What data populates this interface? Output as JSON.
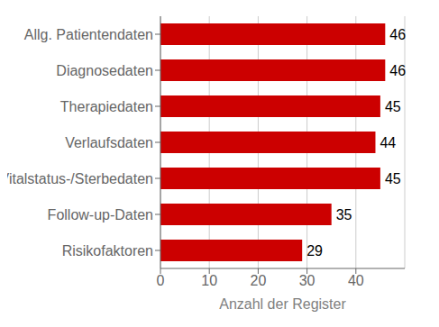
{
  "chart_data": {
    "type": "bar",
    "orientation": "horizontal",
    "categories": [
      "Risikofaktoren",
      "Follow-up-Daten",
      "Vitalstatus-/Sterbedaten",
      "Verlaufsdaten",
      "Therapiedaten",
      "Diagnosedaten",
      "Allg. Patientendaten"
    ],
    "values": [
      29,
      35,
      45,
      44,
      45,
      46,
      46
    ],
    "color": "#cc0000",
    "xlabel": "Anzahl der Register",
    "xlim": [
      0,
      50
    ],
    "xticks": [
      0,
      10,
      20,
      30,
      40
    ],
    "grid": true,
    "data_labels": true
  }
}
